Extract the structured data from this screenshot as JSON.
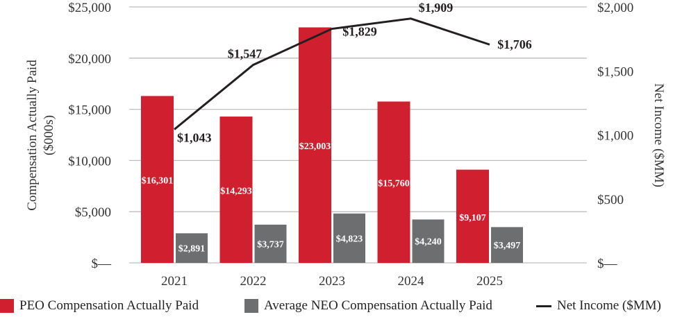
{
  "chart_data": {
    "type": "bar+line",
    "categories": [
      "2021",
      "2022",
      "2023",
      "2024",
      "2025"
    ],
    "series": [
      {
        "name": "PEO Compensation Actually Paid",
        "type": "bar",
        "axis": "left",
        "color": "#d0202f",
        "values": [
          16301,
          14293,
          23003,
          15760,
          9107
        ],
        "labels": [
          "$16,301",
          "$14,293",
          "$23,003",
          "$15,760",
          "$9,107"
        ]
      },
      {
        "name": "Average NEO Compensation Actually Paid",
        "type": "bar",
        "axis": "left",
        "color": "#6d6e70",
        "values": [
          2891,
          3737,
          4823,
          4240,
          3497
        ],
        "labels": [
          "$2,891",
          "$3,737",
          "$4,823",
          "$4,240",
          "$3,497"
        ]
      },
      {
        "name": "Net Income ($MM)",
        "type": "line",
        "axis": "right",
        "color": "#231f20",
        "values": [
          1043,
          1547,
          1829,
          1909,
          1706
        ],
        "labels": [
          "$1,043",
          "$1,547",
          "$1,829",
          "$1,909",
          "$1,706"
        ]
      }
    ],
    "ylabel": "Compensation Actually Paid ($000s)",
    "ylabel_lines": [
      "Compensation Actually Paid",
      "($000s)"
    ],
    "y2label": "Net Income ($MM)",
    "ylim": [
      0,
      25000
    ],
    "y2lim": [
      0,
      2000
    ],
    "yticks": [
      0,
      5000,
      10000,
      15000,
      20000,
      25000
    ],
    "ytick_labels": [
      "$—",
      "$5,000",
      "$10,000",
      "$15,000",
      "$20,000",
      "$25,000"
    ],
    "y2ticks": [
      0,
      500,
      1000,
      1500,
      2000
    ],
    "y2tick_labels": [
      "$—",
      "$500",
      "$1,000",
      "$1,500",
      "$2,000"
    ],
    "grid": true,
    "legend_placement": "bottom"
  }
}
